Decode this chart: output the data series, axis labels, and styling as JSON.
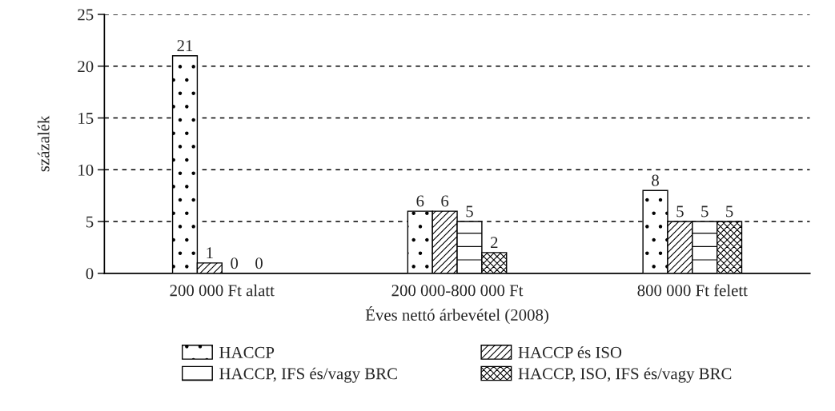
{
  "chart_data": {
    "type": "bar",
    "xlabel": "Éves nettó árbevétel (2008)",
    "ylabel": "százalék",
    "categories": [
      "200 000 Ft alatt",
      "200 000-800 000 Ft",
      "800 000 Ft felett"
    ],
    "series": [
      {
        "name": "HACCP",
        "color": "#000000",
        "values": [
          21,
          6,
          8
        ]
      },
      {
        "name": "HACCP és ISO",
        "color": "#000000",
        "values": [
          1,
          6,
          5
        ]
      },
      {
        "name": "HACCP, IFS és/vagy BRC",
        "color": "#000000",
        "values": [
          0,
          5,
          5
        ]
      },
      {
        "name": "HACCP, ISO, IFS és/vagy BRC",
        "color": "#000000",
        "values": [
          0,
          2,
          5
        ]
      }
    ],
    "ylim": [
      0,
      25
    ],
    "yticks": [
      0,
      5,
      10,
      15,
      20,
      25
    ],
    "grid": "y",
    "legend": "bottom",
    "data_labels": true
  }
}
